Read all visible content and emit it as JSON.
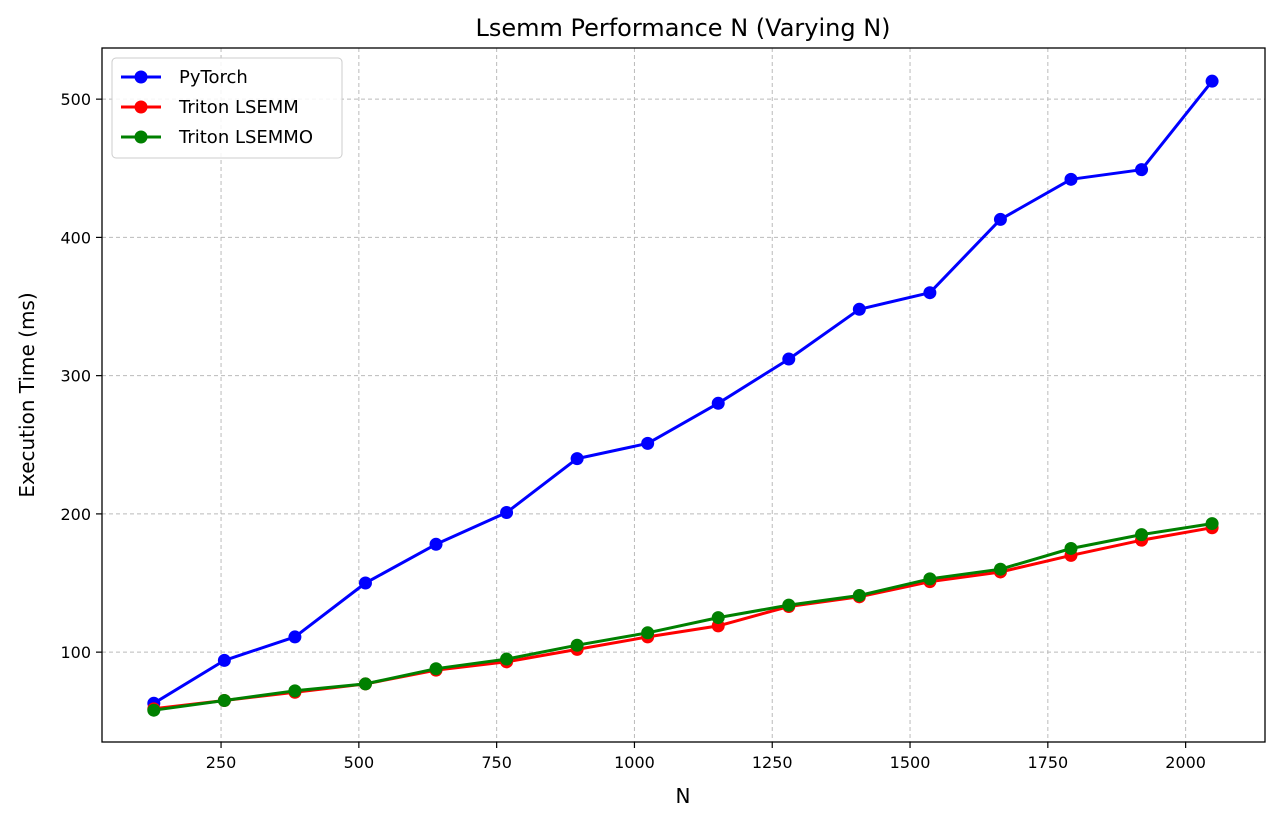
{
  "chart_data": {
    "type": "line",
    "title": "Lsemm Performance N (Varying N)",
    "xlabel": "N",
    "ylabel": "Execution Time (ms)",
    "xlim": [
      34,
      2144
    ],
    "ylim": [
      35,
      537
    ],
    "xticks": [
      250,
      500,
      750,
      1000,
      1250,
      1500,
      1750,
      2000
    ],
    "yticks": [
      100,
      200,
      300,
      400,
      500
    ],
    "grid": true,
    "legend_position": "top-left",
    "x": [
      128,
      256,
      384,
      512,
      640,
      768,
      896,
      1024,
      1152,
      1280,
      1408,
      1536,
      1664,
      1792,
      1920,
      2048
    ],
    "series": [
      {
        "name": "PyTorch",
        "color": "#0000ff",
        "values": [
          63,
          94,
          111,
          150,
          178,
          201,
          240,
          251,
          280,
          312,
          348,
          360,
          413,
          442,
          449,
          513
        ]
      },
      {
        "name": "Triton LSEMM",
        "color": "#ff0000",
        "values": [
          59,
          65,
          71,
          77,
          87,
          93,
          102,
          111,
          119,
          133,
          140,
          151,
          158,
          170,
          181,
          190
        ]
      },
      {
        "name": "Triton LSEMMO",
        "color": "#008000",
        "values": [
          58,
          65,
          72,
          77,
          88,
          95,
          105,
          114,
          125,
          134,
          141,
          153,
          160,
          175,
          185,
          193
        ]
      }
    ]
  }
}
